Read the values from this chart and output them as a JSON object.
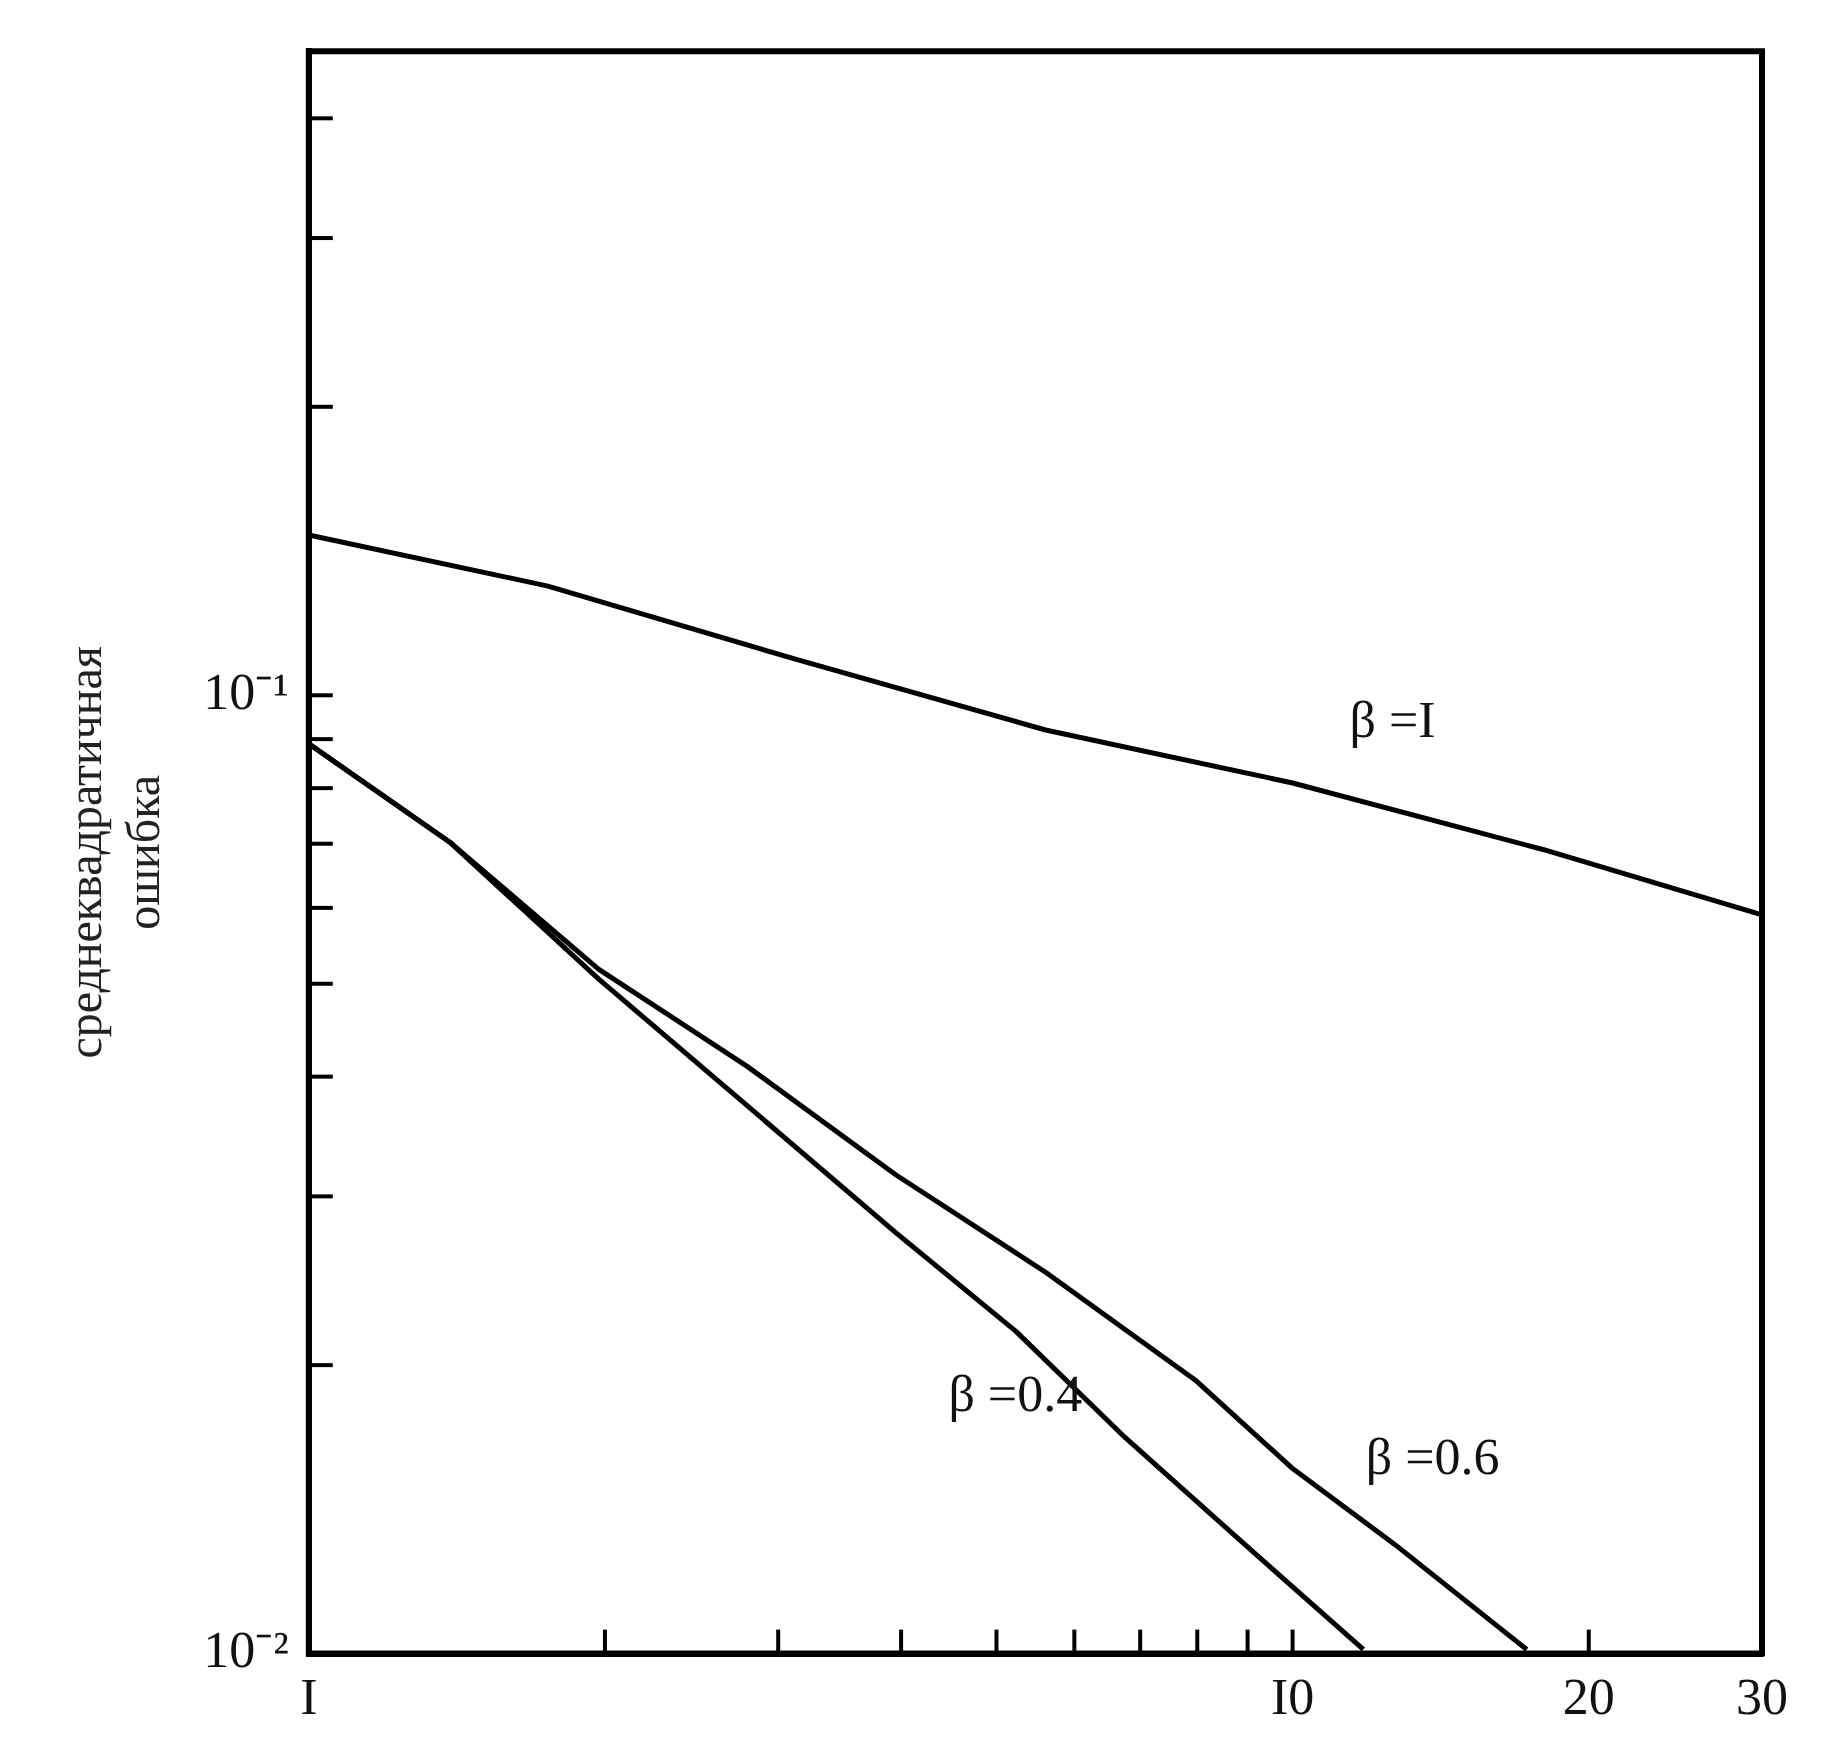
{
  "chart_data": {
    "type": "line",
    "ylabel": "среднеквадратичная ошибка",
    "log": "xy",
    "xlim": [
      1,
      30
    ],
    "xticks": [
      {
        "value": 1,
        "label": "I"
      },
      {
        "value": 2,
        "label": null
      },
      {
        "value": 3,
        "label": null
      },
      {
        "value": 4,
        "label": null
      },
      {
        "value": 5,
        "label": null
      },
      {
        "value": 6,
        "label": null
      },
      {
        "value": 7,
        "label": null
      },
      {
        "value": 8,
        "label": null
      },
      {
        "value": 9,
        "label": null
      },
      {
        "value": 10,
        "label": "I0"
      },
      {
        "value": 20,
        "label": "20"
      },
      {
        "value": 30,
        "label": "30"
      }
    ],
    "ylim": [
      0.01,
      0.47
    ],
    "yticks": [
      {
        "value": 0.01,
        "label": "10⁻²"
      },
      {
        "value": 0.02,
        "label": null
      },
      {
        "value": 0.03,
        "label": null
      },
      {
        "value": 0.04,
        "label": null
      },
      {
        "value": 0.05,
        "label": null
      },
      {
        "value": 0.06,
        "label": null
      },
      {
        "value": 0.07,
        "label": null
      },
      {
        "value": 0.08,
        "label": null
      },
      {
        "value": 0.09,
        "label": null
      },
      {
        "value": 0.1,
        "label": "10⁻¹"
      },
      {
        "value": 0.2,
        "label": null
      },
      {
        "value": 0.3,
        "label": null
      },
      {
        "value": 0.4,
        "label": null
      }
    ],
    "grid": false,
    "legend": false,
    "marker": "none",
    "line_style": "solid",
    "series": [
      {
        "name": "β =I",
        "color": "#000000",
        "x": [
          1,
          1.75,
          3.13,
          5.61,
          10,
          18,
          30
        ],
        "values": [
          0.147,
          0.13,
          0.109,
          0.092,
          0.081,
          0.069,
          0.059
        ]
      },
      {
        "name": "β =0.6",
        "color": "#000000",
        "x": [
          1,
          1.39,
          1.97,
          2.79,
          3.95,
          5.61,
          7.96,
          10,
          12.7,
          17.3
        ],
        "values": [
          0.089,
          0.0703,
          0.0518,
          0.041,
          0.0316,
          0.025,
          0.0193,
          0.0156,
          0.013,
          0.0101
        ]
      },
      {
        "name": "β =0.4",
        "color": "#000000",
        "x": [
          1,
          1.39,
          1.97,
          2.79,
          3.95,
          5.23,
          6.76,
          8.94,
          11.8
        ],
        "values": [
          0.089,
          0.0703,
          0.0506,
          0.0373,
          0.0275,
          0.0217,
          0.0168,
          0.013,
          0.0101
        ]
      }
    ]
  }
}
